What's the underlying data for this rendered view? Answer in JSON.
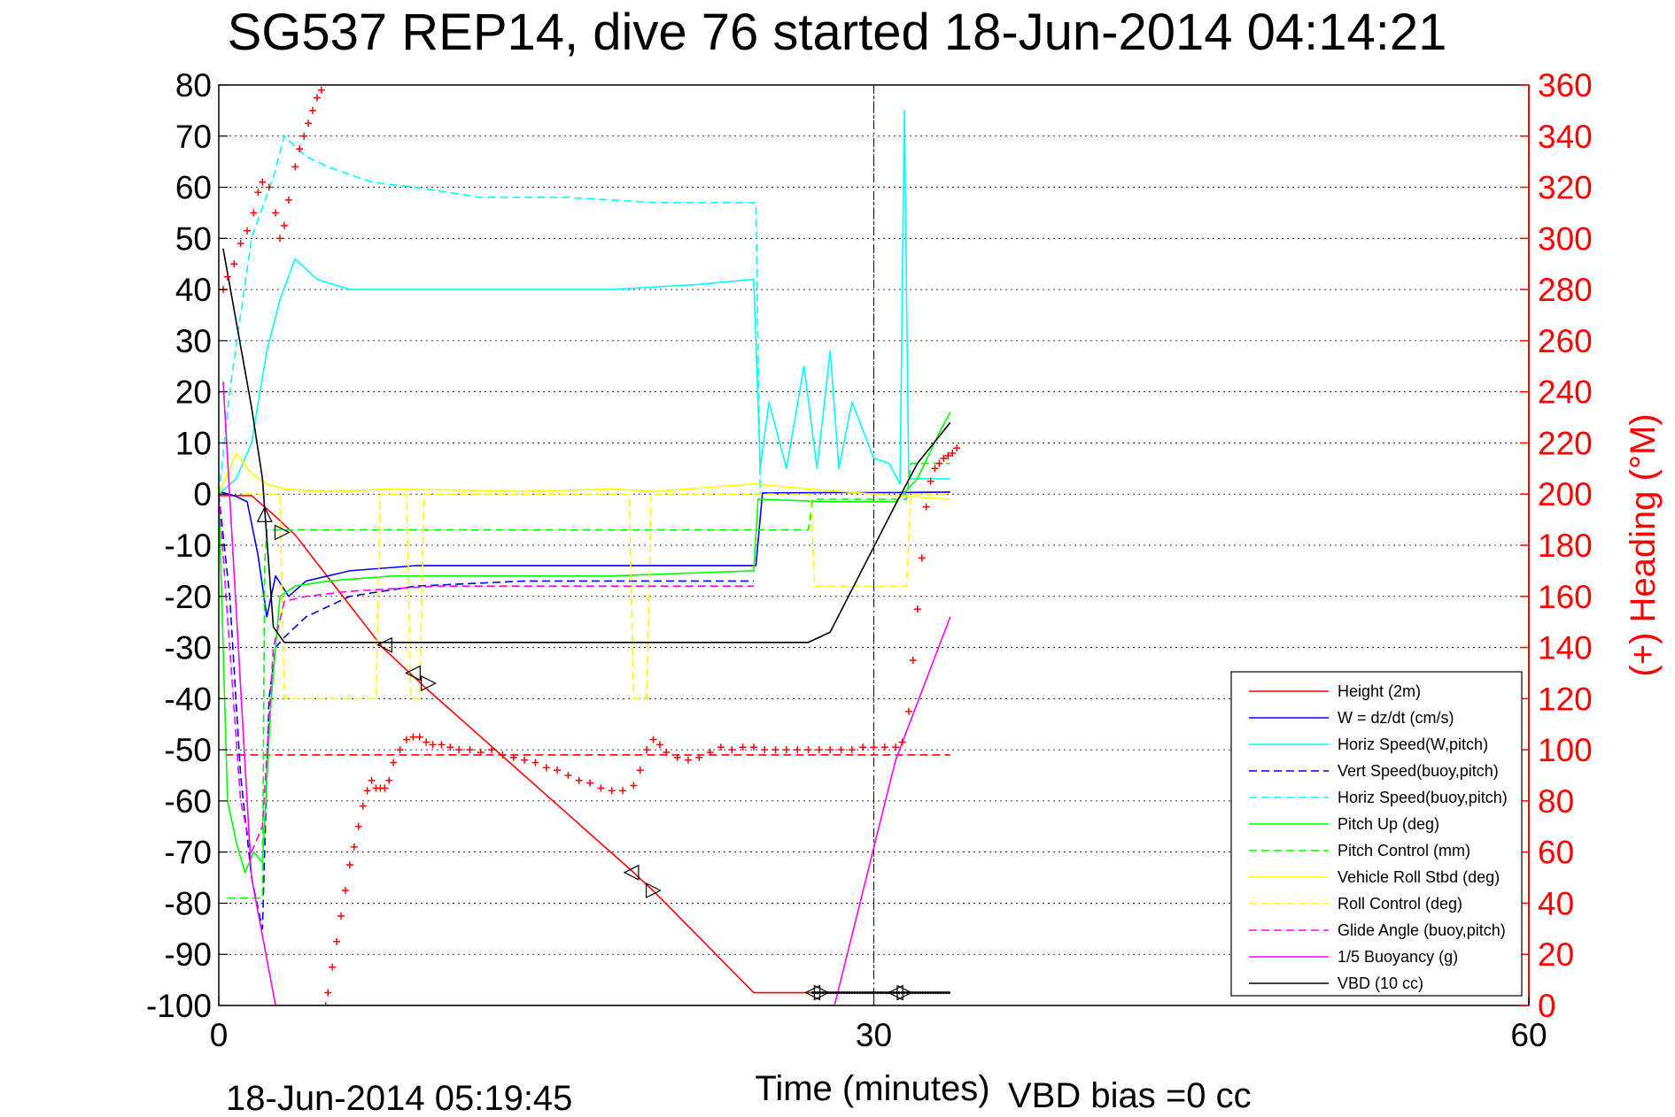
{
  "chart_data": {
    "type": "line",
    "title": "SG537 REP14, dive 76 started 18-Jun-2014 04:14:21",
    "xlabel": "Time (minutes)",
    "ylabel_right": "(+) Heading (°M)",
    "footer_left": "18-Jun-2014 05:19:45",
    "footer_right": "VBD bias =0 cc",
    "xlim": [
      0,
      60
    ],
    "ylim_left": [
      -100,
      80
    ],
    "ylim_right": [
      0,
      360
    ],
    "x_ticks": [
      "0",
      "30",
      "60"
    ],
    "y_ticks_left": [
      "80",
      "70",
      "60",
      "50",
      "40",
      "30",
      "20",
      "10",
      "0",
      "-10",
      "-20",
      "-30",
      "-40",
      "-50",
      "-60",
      "-70",
      "-80",
      "-90",
      "-100"
    ],
    "y_ticks_right": [
      "360",
      "340",
      "320",
      "300",
      "280",
      "260",
      "240",
      "220",
      "200",
      "180",
      "160",
      "140",
      "120",
      "100",
      "80",
      "60",
      "40",
      "20",
      "0"
    ],
    "grid": true,
    "right_axis_color": "#ff0000",
    "vertical_marker_x": 30,
    "legend_position": "bottom-right",
    "series": [
      {
        "name": "Height (2m)",
        "color": "#ff0000",
        "dash": "solid",
        "x": [
          0,
          1.5,
          2.5,
          3.5,
          7.5,
          9,
          9.5,
          19,
          20,
          24.5,
          33.5
        ],
        "y": [
          -0.3,
          -0.3,
          -4,
          -8,
          -30,
          -36,
          -38,
          -74,
          -78,
          -97.5,
          -97.5
        ]
      },
      {
        "name": "W = dz/dt (cm/s)",
        "color": "#0000ff",
        "dash": "solid",
        "x": [
          0,
          0.7,
          1.3,
          1.8,
          2.2,
          2.6,
          3.2,
          4,
          6,
          9,
          12,
          16,
          20,
          24,
          24.6,
          24.9,
          28,
          31,
          33.5
        ],
        "y": [
          0.5,
          -0.3,
          -1.5,
          -12,
          -24,
          -16,
          -20,
          -17,
          -15,
          -14,
          -14,
          -14,
          -14,
          -14,
          -14,
          0.2,
          0.3,
          0.3,
          0.4
        ]
      },
      {
        "name": "Horiz Speed(W,pitch)",
        "color": "#00ffff",
        "dash": "solid",
        "x": [
          0,
          0.8,
          1.5,
          2.2,
          2.8,
          3.5,
          4.5,
          6,
          8,
          10,
          14,
          18,
          22,
          24.5,
          24.8,
          25.2,
          26,
          26.8,
          27.4,
          28,
          28.4,
          29,
          30,
          30.7,
          31.2,
          31.4,
          31.6,
          32,
          33.5
        ],
        "y": [
          0,
          3,
          10,
          28,
          38,
          46,
          42,
          40,
          40,
          40,
          40,
          40,
          41,
          42,
          5,
          18,
          5,
          25,
          5,
          28,
          5,
          18,
          7,
          6,
          2,
          75,
          3,
          3,
          3
        ]
      },
      {
        "name": "Vert Speed(buoy,pitch)",
        "color": "#0000ff",
        "dash": "dashed",
        "x": [
          0,
          0.5,
          1,
          1.5,
          2,
          2.3,
          2.6,
          3,
          4,
          6,
          9,
          14,
          20,
          24.5
        ],
        "y": [
          0,
          -20,
          -55,
          -75,
          -85,
          -40,
          -30,
          -28,
          -24,
          -20,
          -18,
          -17,
          -17,
          -17
        ]
      },
      {
        "name": "Horiz Speed(buoy,pitch)",
        "color": "#00ffff",
        "dash": "dashed",
        "x": [
          0,
          0.5,
          1,
          1.5,
          2.5,
          3,
          4,
          5,
          7,
          9,
          12,
          16,
          20,
          24,
          24.6,
          24.8
        ],
        "y": [
          0,
          20,
          35,
          50,
          62,
          70,
          66,
          64,
          61,
          60,
          58,
          58,
          57,
          57,
          57,
          0
        ]
      },
      {
        "name": "Pitch Up (deg)",
        "color": "#00ff00",
        "dash": "solid",
        "x": [
          0,
          0.4,
          0.8,
          1.2,
          1.6,
          2,
          2.4,
          2.8,
          3.5,
          5,
          8,
          12,
          18,
          24.5,
          24.7,
          28,
          31,
          32,
          33,
          33.5
        ],
        "y": [
          0,
          -60,
          -68,
          -74,
          -70,
          -72,
          -40,
          -20,
          -18,
          -17,
          -16,
          -16,
          -16,
          -15,
          -1,
          -1.5,
          -1.5,
          3,
          12,
          16
        ]
      },
      {
        "name": "Pitch Control (mm)",
        "color": "#00ff00",
        "dash": "dashed",
        "x": [
          0.4,
          2.0,
          2.1,
          2.2,
          27,
          27.2,
          31.5,
          31.7,
          33.5
        ],
        "y": [
          -79,
          -79,
          -14,
          -7,
          -7,
          -1,
          -1,
          6,
          6
        ]
      },
      {
        "name": "Vehicle Roll Stbd (deg)",
        "color": "#ffff00",
        "dash": "solid",
        "x": [
          0,
          0.8,
          1.5,
          2.2,
          3,
          5,
          8,
          14,
          18,
          20,
          24.5,
          27,
          30,
          33.5
        ],
        "y": [
          0,
          8,
          4,
          2,
          1,
          0.5,
          1,
          0.5,
          1,
          0.5,
          2,
          1,
          0,
          -1
        ]
      },
      {
        "name": "Roll Control (deg)",
        "color": "#ffff00",
        "dash": "dashed",
        "x": [
          1.2,
          2.8,
          3.0,
          3.1,
          7.2,
          7.4,
          8.6,
          8.8,
          9.2,
          9.4,
          18.8,
          19.0,
          19.6,
          19.8,
          24.5,
          27.1,
          27.3,
          31.5,
          31.7,
          33.5
        ],
        "y": [
          0,
          0,
          -40,
          -40,
          -40,
          0,
          0,
          -40,
          -40,
          0,
          0,
          -40,
          -40,
          0,
          0,
          0,
          -18,
          -18,
          0,
          0
        ]
      },
      {
        "name": "Glide Angle (buoy,pitch)",
        "color": "#ff00ff",
        "dash": "dashed",
        "x": [
          0,
          0.5,
          1,
          1.5,
          2,
          2.5,
          3,
          4,
          6,
          10,
          16,
          24.5
        ],
        "y": [
          0,
          -30,
          -60,
          -70,
          -65,
          -30,
          -21,
          -20,
          -19,
          -18,
          -18,
          -18
        ]
      },
      {
        "name": "1/5 Buoyancy (g)",
        "color": "#ff00ff",
        "dash": "solid",
        "x": [
          0.2,
          1.5,
          2.6,
          28.2,
          31,
          33.5
        ],
        "y": [
          22,
          -75,
          -100,
          -100,
          -52,
          -24
        ]
      },
      {
        "name": "VBD (10 cc)",
        "color": "#000000",
        "dash": "solid",
        "x": [
          0.2,
          1.5,
          2,
          2.5,
          3,
          27,
          28,
          31,
          32,
          33.5
        ],
        "y": [
          48,
          17,
          3,
          -26,
          -29,
          -29,
          -27,
          -2,
          6,
          14
        ]
      }
    ],
    "reference_line": {
      "color": "#ff0000",
      "dash": "dashed",
      "x": [
        0.3,
        33.5
      ],
      "y": [
        -51,
        -51
      ]
    },
    "heading_points": {
      "name": "Heading (+)",
      "axis": "right",
      "color": "#ff0000",
      "x": [
        0.2,
        0.4,
        0.7,
        1.0,
        1.3,
        1.6,
        1.8,
        2.0,
        2.3,
        2.6,
        2.8,
        3.0,
        3.2,
        3.5,
        3.7,
        3.9,
        4.1,
        4.3,
        4.5,
        4.7,
        4.9,
        5.0,
        5.2,
        5.4,
        5.6,
        5.8,
        6.0,
        6.2,
        6.4,
        6.6,
        6.8,
        7.0,
        7.2,
        7.4,
        7.6,
        7.8,
        8.0,
        8.3,
        8.6,
        8.9,
        9.2,
        9.5,
        9.8,
        10.2,
        10.6,
        11,
        11.5,
        12,
        12.5,
        13,
        13.5,
        14,
        14.5,
        15,
        15.5,
        16,
        16.5,
        17,
        17.5,
        18,
        18.5,
        19,
        19.3,
        19.6,
        19.9,
        20.2,
        20.5,
        21,
        21.5,
        22,
        22.5,
        23,
        23.5,
        24,
        24.5,
        25,
        25.5,
        26,
        26.5,
        27,
        27.5,
        28,
        28.5,
        29,
        29.5,
        30,
        30.5,
        31,
        31.3,
        31.6,
        31.8,
        32.0,
        32.2,
        32.4,
        32.6,
        32.8,
        33.0,
        33.2,
        33.4,
        33.6,
        33.8
      ],
      "y": [
        280,
        285,
        290,
        298,
        303,
        310,
        318,
        322,
        320,
        310,
        300,
        305,
        315,
        328,
        335,
        340,
        345,
        350,
        355,
        358,
        0,
        5,
        15,
        25,
        35,
        45,
        55,
        62,
        70,
        78,
        84,
        88,
        85,
        85,
        85,
        88,
        95,
        100,
        104,
        105,
        105,
        103,
        102,
        102,
        101,
        100,
        100,
        99,
        100,
        98,
        97,
        96,
        95,
        93,
        92,
        90,
        88,
        87,
        85,
        84,
        84,
        86,
        92,
        100,
        104,
        102,
        99,
        97,
        96,
        97,
        99,
        101,
        100,
        101,
        101,
        100,
        100,
        100,
        100,
        100,
        100,
        100,
        100,
        100,
        101,
        101,
        101,
        101,
        103,
        115,
        135,
        155,
        175,
        195,
        205,
        210,
        212,
        214,
        215,
        216,
        218
      ]
    },
    "markers": [
      {
        "x": 2.1,
        "y": -4,
        "dir": "up"
      },
      {
        "x": 2.9,
        "y": -7.5,
        "dir": "right"
      },
      {
        "x": 7.6,
        "y": -29.5,
        "dir": "left"
      },
      {
        "x": 8.9,
        "y": -35,
        "dir": "left"
      },
      {
        "x": 9.6,
        "y": -37,
        "dir": "right"
      },
      {
        "x": 18.9,
        "y": -74,
        "dir": "left"
      },
      {
        "x": 19.9,
        "y": -77.5,
        "dir": "right"
      },
      {
        "x": 27.2,
        "y": -97.5,
        "dir": "left"
      },
      {
        "x": 27.6,
        "y": -97.5,
        "dir": "right"
      },
      {
        "x": 31.0,
        "y": -97.5,
        "dir": "left"
      },
      {
        "x": 31.4,
        "y": -97.5,
        "dir": "right"
      }
    ]
  }
}
